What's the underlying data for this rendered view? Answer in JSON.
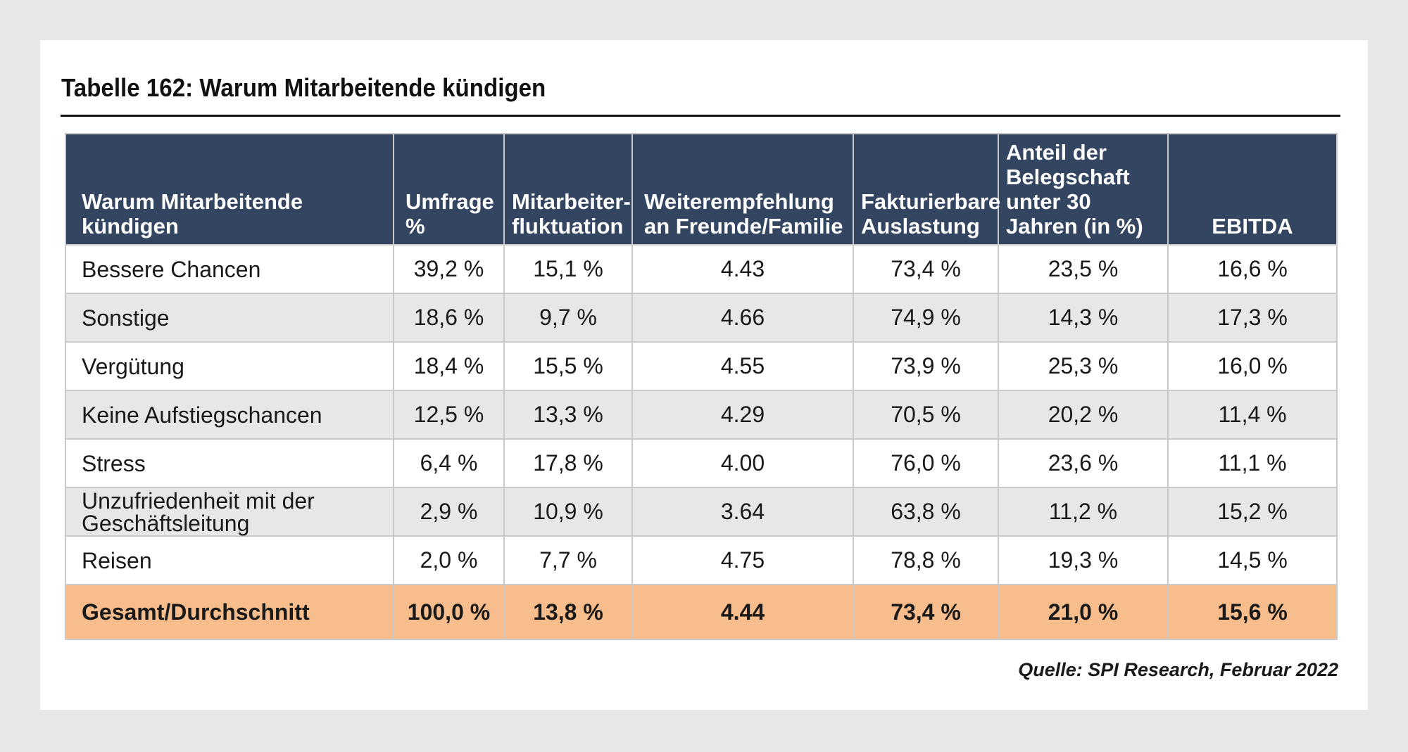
{
  "title": "Tabelle 162: Warum Mitarbeitende kündigen",
  "headers": [
    "Warum Mitarbeitende kündigen",
    "Umfrage %",
    "Mitarbeiter-fluktuation",
    "Weiterempfehlung an Freunde/Familie",
    "Fakturierbare Auslastung",
    "Anteil der Belegschaft unter 30 Jahren (in %)",
    "EBITDA"
  ],
  "rows": [
    [
      "Bessere Chancen",
      "39,2 %",
      "15,1 %",
      "4.43",
      "73,4 %",
      "23,5 %",
      "16,6 %"
    ],
    [
      "Sonstige",
      "18,6 %",
      "9,7 %",
      "4.66",
      "74,9 %",
      "14,3 %",
      "17,3 %"
    ],
    [
      "Vergütung",
      "18,4 %",
      "15,5 %",
      "4.55",
      "73,9 %",
      "25,3 %",
      "16,0 %"
    ],
    [
      "Keine Aufstiegschancen",
      "12,5 %",
      "13,3 %",
      "4.29",
      "70,5 %",
      "20,2 %",
      "11,4 %"
    ],
    [
      "Stress",
      "6,4 %",
      "17,8 %",
      "4.00",
      "76,0 %",
      "23,6 %",
      "11,1 %"
    ],
    [
      "Unzufriedenheit mit der Geschäftsleitung",
      "2,9 %",
      "10,9 %",
      "3.64",
      "63,8 %",
      "11,2 %",
      "15,2 %"
    ],
    [
      "Reisen",
      "2,0 %",
      "7,7 %",
      "4.75",
      "78,8 %",
      "19,3 %",
      "14,5 %"
    ]
  ],
  "total": [
    "Gesamt/Durchschnitt",
    "100,0 %",
    "13,8 %",
    "4.44",
    "73,4 %",
    "21,0 %",
    "15,6 %"
  ],
  "source": "Quelle: SPI Research, Februar 2022",
  "colors": {
    "header_bg": "#344562",
    "alt_row_bg": "#e7e7e7",
    "total_row_bg": "#f8bd8c"
  }
}
